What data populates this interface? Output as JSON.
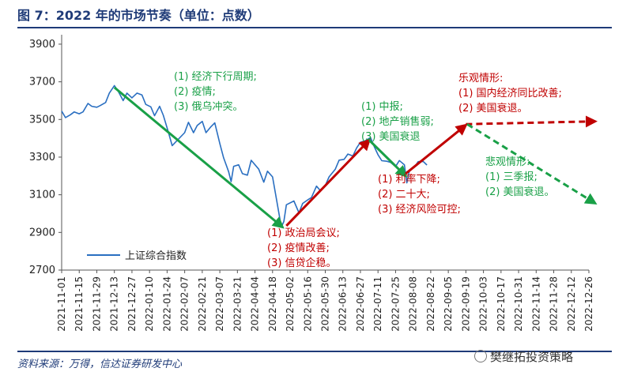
{
  "title": "图 7：2022 年的市场节奏（单位：点数）",
  "source": "资料来源：万得，信达证券研发中心",
  "watermark": "樊继拓投资策略",
  "colors": {
    "index_line": "#2a6fc1",
    "green": "#19a047",
    "red": "#c00000",
    "brand": "#1f3b78"
  },
  "annotations": [
    {
      "id": "ann-1",
      "color": "green",
      "lines": [
        "(1) 经济下行周期;",
        "(2) 疫情;",
        "(3) 俄乌冲突。"
      ]
    },
    {
      "id": "ann-2",
      "color": "red",
      "lines": [
        "(1) 政治局会议;",
        "(2) 疫情改善;",
        "(3) 信贷企稳。"
      ]
    },
    {
      "id": "ann-3",
      "color": "green",
      "lines": [
        "(1) 中报;",
        "(2) 地产销售弱;",
        "(3) 美国衰退"
      ]
    },
    {
      "id": "ann-4",
      "color": "red",
      "lines": [
        "(1) 利率下降;",
        "(2) 二十大;",
        "(3) 经济风险可控;"
      ]
    },
    {
      "id": "ann-5",
      "color": "red",
      "lines": [
        "乐观情形:",
        "(1) 国内经济同比改善;",
        "(2) 美国衰退。"
      ]
    },
    {
      "id": "ann-6",
      "color": "green",
      "lines": [
        "悲观情形:",
        "(1) 三季报;",
        "(2) 美国衰退。"
      ]
    }
  ],
  "chart_data": {
    "type": "line",
    "title": "",
    "xlabel": "",
    "ylabel": "",
    "ylim": [
      2700,
      3950
    ],
    "yticks": [
      2700,
      2900,
      3100,
      3300,
      3500,
      3700,
      3900
    ],
    "grid": false,
    "legend": {
      "position": "bottom-left",
      "entries": [
        "上证综合指数"
      ]
    },
    "xticks": [
      "2021-11-01",
      "2021-11-15",
      "2021-11-29",
      "2021-12-13",
      "2021-12-27",
      "2022-01-10",
      "2022-01-24",
      "2022-02-07",
      "2022-02-21",
      "2022-03-07",
      "2022-03-21",
      "2022-04-04",
      "2022-04-18",
      "2022-05-02",
      "2022-05-16",
      "2022-05-30",
      "2022-06-13",
      "2022-06-27",
      "2022-07-11",
      "2022-07-25",
      "2022-08-08",
      "2022-08-22",
      "2022-09-05",
      "2022-09-19",
      "2022-10-03",
      "2022-10-17",
      "2022-10-31",
      "2022-11-14",
      "2022-11-28",
      "2022-12-12",
      "2022-12-26"
    ],
    "series": [
      {
        "name": "上证综合指数",
        "points": [
          [
            "2021-11-01",
            3545
          ],
          [
            "2021-11-04",
            3510
          ],
          [
            "2021-11-08",
            3525
          ],
          [
            "2021-11-11",
            3540
          ],
          [
            "2021-11-15",
            3530
          ],
          [
            "2021-11-18",
            3540
          ],
          [
            "2021-11-22",
            3585
          ],
          [
            "2021-11-25",
            3570
          ],
          [
            "2021-11-29",
            3565
          ],
          [
            "2021-12-02",
            3575
          ],
          [
            "2021-12-06",
            3590
          ],
          [
            "2021-12-09",
            3640
          ],
          [
            "2021-12-13",
            3680
          ],
          [
            "2021-12-16",
            3650
          ],
          [
            "2021-12-20",
            3600
          ],
          [
            "2021-12-23",
            3640
          ],
          [
            "2021-12-27",
            3615
          ],
          [
            "2021-12-31",
            3640
          ],
          [
            "2022-01-04",
            3630
          ],
          [
            "2022-01-07",
            3580
          ],
          [
            "2022-01-11",
            3567
          ],
          [
            "2022-01-14",
            3520
          ],
          [
            "2022-01-18",
            3570
          ],
          [
            "2022-01-21",
            3522
          ],
          [
            "2022-01-25",
            3433
          ],
          [
            "2022-01-28",
            3361
          ],
          [
            "2022-02-07",
            3430
          ],
          [
            "2022-02-10",
            3485
          ],
          [
            "2022-02-14",
            3430
          ],
          [
            "2022-02-17",
            3468
          ],
          [
            "2022-02-21",
            3490
          ],
          [
            "2022-02-24",
            3430
          ],
          [
            "2022-02-28",
            3462
          ],
          [
            "2022-03-03",
            3482
          ],
          [
            "2022-03-07",
            3372
          ],
          [
            "2022-03-10",
            3296
          ],
          [
            "2022-03-14",
            3223
          ],
          [
            "2022-03-16",
            3170
          ],
          [
            "2022-03-18",
            3251
          ],
          [
            "2022-03-22",
            3259
          ],
          [
            "2022-03-25",
            3212
          ],
          [
            "2022-03-29",
            3204
          ],
          [
            "2022-04-01",
            3283
          ],
          [
            "2022-04-07",
            3236
          ],
          [
            "2022-04-11",
            3167
          ],
          [
            "2022-04-14",
            3225
          ],
          [
            "2022-04-18",
            3195
          ],
          [
            "2022-04-21",
            3080
          ],
          [
            "2022-04-25",
            2928
          ],
          [
            "2022-04-27",
            2958
          ],
          [
            "2022-04-29",
            3047
          ],
          [
            "2022-05-05",
            3067
          ],
          [
            "2022-05-09",
            3004
          ],
          [
            "2022-05-12",
            3054
          ],
          [
            "2022-05-16",
            3073
          ],
          [
            "2022-05-19",
            3085
          ],
          [
            "2022-05-23",
            3146
          ],
          [
            "2022-05-26",
            3123
          ],
          [
            "2022-05-30",
            3149
          ],
          [
            "2022-06-02",
            3195
          ],
          [
            "2022-06-07",
            3236
          ],
          [
            "2022-06-10",
            3284
          ],
          [
            "2022-06-14",
            3288
          ],
          [
            "2022-06-17",
            3316
          ],
          [
            "2022-06-21",
            3306
          ],
          [
            "2022-06-24",
            3349
          ],
          [
            "2022-06-27",
            3379
          ],
          [
            "2022-07-01",
            3387
          ],
          [
            "2022-07-05",
            3404
          ],
          [
            "2022-07-08",
            3356
          ],
          [
            "2022-07-11",
            3313
          ],
          [
            "2022-07-14",
            3281
          ],
          [
            "2022-07-18",
            3278
          ],
          [
            "2022-07-21",
            3272
          ],
          [
            "2022-07-25",
            3250
          ],
          [
            "2022-07-28",
            3282
          ],
          [
            "2022-08-01",
            3259
          ],
          [
            "2022-08-03",
            3163
          ],
          [
            "2022-08-05",
            3227
          ],
          [
            "2022-08-09",
            3247
          ],
          [
            "2022-08-12",
            3276
          ],
          [
            "2022-08-16",
            3277
          ],
          [
            "2022-08-19",
            3258
          ]
        ]
      }
    ],
    "arrows": [
      {
        "color": "green",
        "style": "solid",
        "from": [
          "2021-12-13",
          3670
        ],
        "to": [
          "2022-04-26",
          2928
        ]
      },
      {
        "color": "red",
        "style": "solid",
        "from": [
          "2022-04-29",
          2935
        ],
        "to": [
          "2022-07-04",
          3390
        ]
      },
      {
        "color": "green",
        "style": "solid",
        "from": [
          "2022-07-04",
          3390
        ],
        "to": [
          "2022-08-02",
          3200
        ]
      },
      {
        "color": "red",
        "style": "solid",
        "from": [
          "2022-08-02",
          3212
        ],
        "to": [
          "2022-09-19",
          3470
        ]
      },
      {
        "color": "red",
        "style": "dashed",
        "from": [
          "2022-09-19",
          3475
        ],
        "to": [
          "2022-12-31",
          3490
        ]
      },
      {
        "color": "green",
        "style": "dashed",
        "from": [
          "2022-09-20",
          3475
        ],
        "to": [
          "2022-12-31",
          3055
        ]
      }
    ]
  }
}
